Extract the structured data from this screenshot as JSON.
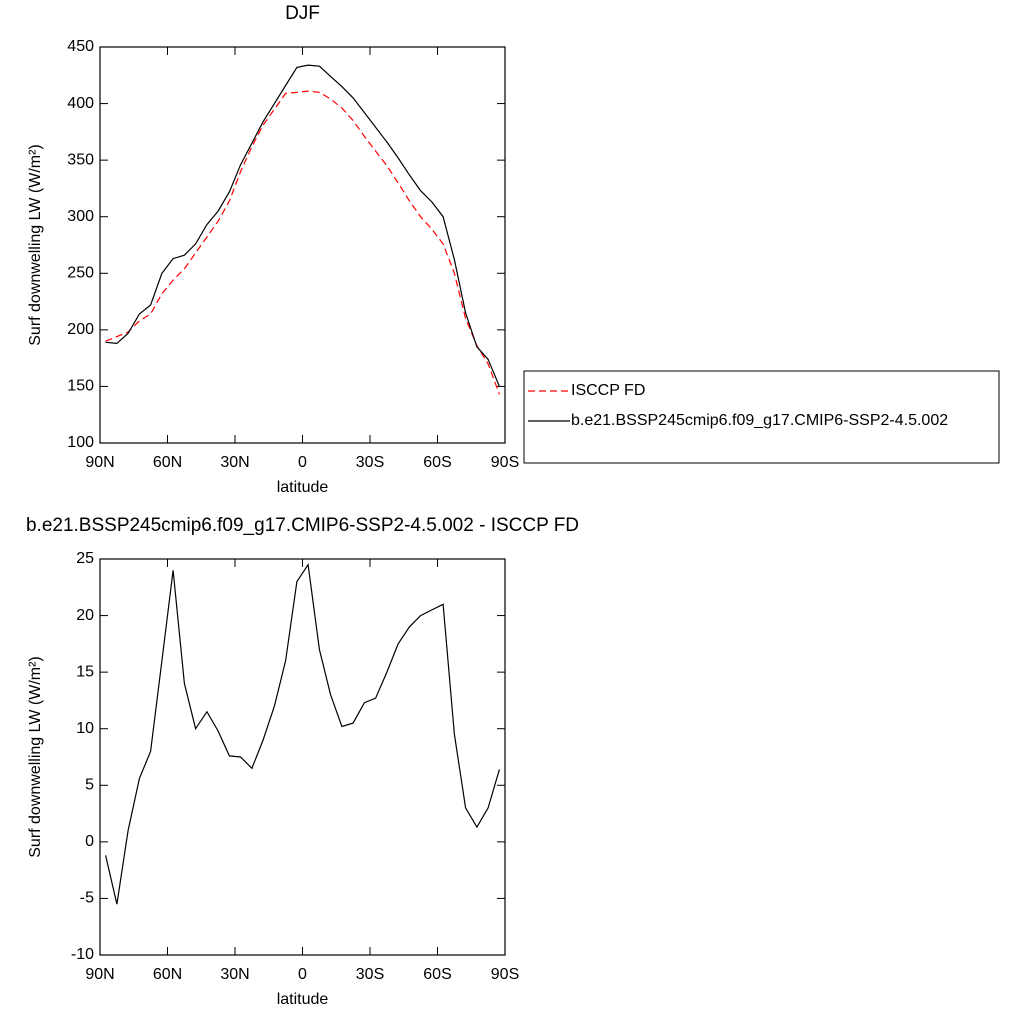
{
  "chart_data": [
    {
      "type": "line",
      "title": "DJF",
      "xlabel": "latitude",
      "ylabel": "Surf downwelling LW (W/m²)",
      "x": [
        87.5,
        82.5,
        77.5,
        72.5,
        67.5,
        62.5,
        57.5,
        52.5,
        47.5,
        42.5,
        37.5,
        32.5,
        27.5,
        22.5,
        17.5,
        12.5,
        7.5,
        2.5,
        -2.5,
        -7.5,
        -12.5,
        -17.5,
        -22.5,
        -27.5,
        -32.5,
        -37.5,
        -42.5,
        -47.5,
        -52.5,
        -57.5,
        -62.5,
        -67.5,
        -72.5,
        -77.5,
        -82.5,
        -87.5
      ],
      "series": [
        {
          "name": "ISCCP FD",
          "color": "#ff0000",
          "dash": true,
          "values": [
            190,
            194,
            198,
            208,
            214,
            232,
            244,
            254,
            268,
            282,
            296,
            314,
            340,
            362,
            381,
            395,
            409,
            410,
            411,
            410,
            404,
            396,
            385,
            371,
            358,
            345,
            330,
            314,
            300,
            289,
            276,
            250,
            210,
            186,
            170,
            143
          ]
        },
        {
          "name": "b.e21.BSSP245cmip6.f09_g17.CMIP6-SSP2-4.5.002",
          "color": "#000000",
          "dash": false,
          "values": [
            189,
            188,
            197,
            214,
            222,
            250,
            263,
            266,
            276,
            293,
            305,
            322,
            346,
            365,
            384,
            400,
            416,
            432,
            434,
            433,
            424,
            415,
            405,
            392,
            379,
            366,
            352,
            337,
            323,
            313,
            300,
            262,
            215,
            185,
            174,
            150
          ]
        }
      ],
      "xlim": [
        90,
        -90
      ],
      "xticks": [
        {
          "value": 90,
          "label": "90N"
        },
        {
          "value": 60,
          "label": "60N"
        },
        {
          "value": 30,
          "label": "30N"
        },
        0,
        {
          "value": -30,
          "label": "30S"
        },
        {
          "value": -60,
          "label": "60S"
        },
        {
          "value": -90,
          "label": "90S"
        }
      ],
      "ylim": [
        100,
        450
      ],
      "yticks": [
        100,
        150,
        200,
        250,
        300,
        350,
        400,
        450
      ],
      "legend": "right"
    },
    {
      "type": "line",
      "title": "b.e21.BSSP245cmip6.f09_g17.CMIP6-SSP2-4.5.002 - ISCCP FD",
      "xlabel": "latitude",
      "ylabel": "Surf downwelling LW (W/m²)",
      "x": [
        87.5,
        82.5,
        77.5,
        72.5,
        67.5,
        62.5,
        57.5,
        52.5,
        47.5,
        42.5,
        37.5,
        32.5,
        27.5,
        22.5,
        17.5,
        12.5,
        7.5,
        2.5,
        -2.5,
        -7.5,
        -12.5,
        -17.5,
        -22.5,
        -27.5,
        -32.5,
        -37.5,
        -42.5,
        -47.5,
        -52.5,
        -57.5,
        -62.5,
        -67.5,
        -72.5,
        -77.5,
        -82.5,
        -87.5
      ],
      "series": [
        {
          "color": "#000000",
          "dash": false,
          "values": [
            -1.2,
            -5.5,
            1,
            5.6,
            8,
            16,
            24,
            14,
            10,
            11.5,
            9.8,
            7.6,
            7.5,
            6.5,
            9,
            12,
            16,
            23,
            24.5,
            17,
            13,
            10.2,
            10.5,
            12.3,
            12.7,
            15,
            17.5,
            19,
            20,
            20.5,
            21,
            9.5,
            3,
            1.3,
            3,
            6.4
          ]
        }
      ],
      "xlim": [
        90,
        -90
      ],
      "xticks": [
        {
          "value": 90,
          "label": "90N"
        },
        {
          "value": 60,
          "label": "60N"
        },
        {
          "value": 30,
          "label": "30N"
        },
        0,
        {
          "value": -30,
          "label": "30S"
        },
        {
          "value": -60,
          "label": "60S"
        },
        {
          "value": -90,
          "label": "90S"
        }
      ],
      "ylim": [
        -10,
        25
      ],
      "yticks": [
        -10,
        -5,
        0,
        5,
        10,
        15,
        20,
        25
      ]
    }
  ]
}
